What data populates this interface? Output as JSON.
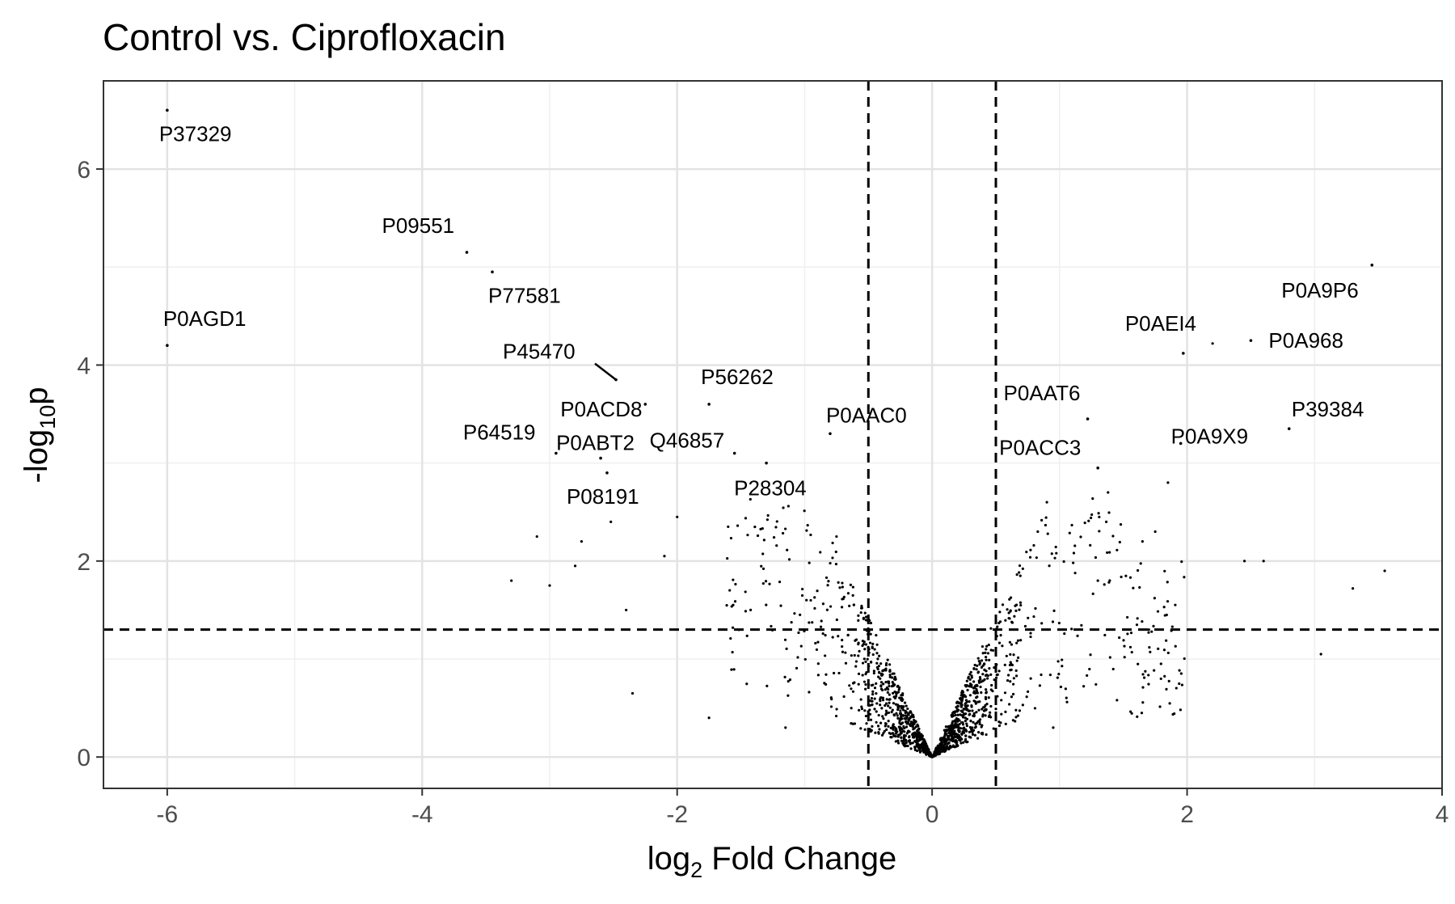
{
  "chart_data": {
    "type": "scatter",
    "title": "Control vs. Ciprofloxacin",
    "xlabel": {
      "prefix": "log",
      "sub": "2",
      "suffix": " Fold Change"
    },
    "ylabel": {
      "prefix": "-log",
      "sub": "10",
      "suffix": "p"
    },
    "xlim": [
      -6.5,
      4.0
    ],
    "ylim": [
      -0.32,
      6.9
    ],
    "x_ticks": [
      -6,
      -4,
      -2,
      0,
      2,
      4
    ],
    "x_tick_labels": [
      "-6",
      "-4",
      "-2",
      "0",
      "2",
      "4"
    ],
    "y_ticks": [
      0,
      2,
      4,
      6
    ],
    "y_tick_labels": [
      "0",
      "2",
      "4",
      "6"
    ],
    "grid": true,
    "thresholds": {
      "fold_change_lines": [
        -0.5,
        0.5
      ],
      "p_line": 1.3
    },
    "point_color": "#000000",
    "labeled_points": [
      {
        "label": "P37329",
        "x": -6.0,
        "y": 6.6
      },
      {
        "label": "P09551",
        "x": -3.65,
        "y": 5.15
      },
      {
        "label": "P77581",
        "x": -3.45,
        "y": 4.95
      },
      {
        "label": "P0AGD1",
        "x": -6.0,
        "y": 4.2
      },
      {
        "label": "P45470",
        "x": -2.48,
        "y": 3.85
      },
      {
        "label": "P0ACD8",
        "x": -2.25,
        "y": 3.6
      },
      {
        "label": "P56262",
        "x": -1.75,
        "y": 3.6
      },
      {
        "label": "P64519",
        "x": -2.95,
        "y": 3.1
      },
      {
        "label": "P0ABT2",
        "x": -2.6,
        "y": 3.05
      },
      {
        "label": "Q46857",
        "x": -1.55,
        "y": 3.1
      },
      {
        "label": "P0AAC0",
        "x": -0.8,
        "y": 3.3
      },
      {
        "label": "P08191",
        "x": -2.55,
        "y": 2.9
      },
      {
        "label": "P28304",
        "x": -1.3,
        "y": 3.0
      },
      {
        "label": "P0ACC3",
        "x": 1.3,
        "y": 2.95
      },
      {
        "label": "P0AEI4",
        "x": 1.97,
        "y": 4.12
      },
      {
        "label": "P0A9P6",
        "x": 3.45,
        "y": 5.02
      },
      {
        "label": "P0A968",
        "x": 2.5,
        "y": 4.25
      },
      {
        "label": "P0AAT6",
        "x": 1.22,
        "y": 3.45
      },
      {
        "label": "P39384",
        "x": 2.8,
        "y": 3.35
      },
      {
        "label": "P0A9X9",
        "x": 1.95,
        "y": 3.2
      }
    ],
    "extra_points": [
      {
        "x": 2.2,
        "y": 4.22
      },
      {
        "x": 1.95,
        "y": 3.2
      },
      {
        "x": 1.85,
        "y": 2.8
      },
      {
        "x": -3.3,
        "y": 1.8
      },
      {
        "x": -3.1,
        "y": 2.25
      },
      {
        "x": -2.8,
        "y": 1.95
      },
      {
        "x": -2.4,
        "y": 1.5
      },
      {
        "x": -2.0,
        "y": 2.45
      },
      {
        "x": -1.6,
        "y": 2.35
      },
      {
        "x": -0.75,
        "y": 2.25
      },
      {
        "x": 0.9,
        "y": 2.6
      },
      {
        "x": 1.65,
        "y": 2.2
      },
      {
        "x": 1.75,
        "y": 2.3
      },
      {
        "x": 2.45,
        "y": 2.0
      },
      {
        "x": 2.6,
        "y": 2.0
      },
      {
        "x": 3.3,
        "y": 1.72
      },
      {
        "x": 3.55,
        "y": 1.9
      },
      {
        "x": 3.05,
        "y": 1.05
      },
      {
        "x": 1.45,
        "y": 0.58
      },
      {
        "x": -2.35,
        "y": 0.65
      },
      {
        "x": -1.75,
        "y": 0.4
      },
      {
        "x": -1.15,
        "y": 0.3
      },
      {
        "x": 0.95,
        "y": 0.3
      },
      {
        "x": 1.3,
        "y": 1.8
      },
      {
        "x": -2.75,
        "y": 2.2
      },
      {
        "x": -3.0,
        "y": 1.75
      },
      {
        "x": 1.7,
        "y": 1.3
      },
      {
        "x": 1.38,
        "y": 2.7
      },
      {
        "x": -2.1,
        "y": 2.05
      },
      {
        "x": -2.52,
        "y": 2.4
      }
    ]
  }
}
